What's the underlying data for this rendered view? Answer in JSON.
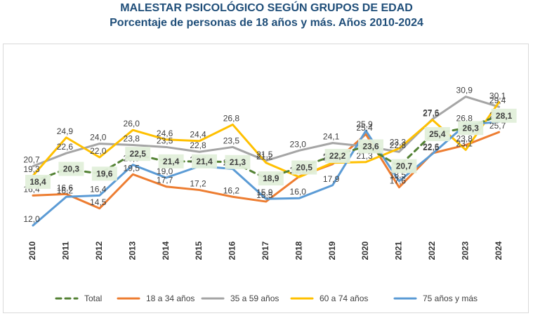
{
  "chart_data": {
    "type": "line",
    "title": "MALESTAR PSICOLÓGICO SEGÚN GRUPOS DE EDAD",
    "subtitle": "Porcentaje de personas de 18 años y más. Años 2010-2024",
    "x": [
      "2010",
      "2011",
      "2012",
      "2013",
      "2014",
      "2015",
      "2016",
      "2017",
      "2018",
      "2019",
      "2020",
      "2021",
      "2022",
      "2023",
      "2024"
    ],
    "ylim": [
      10,
      32
    ],
    "grid": false,
    "legend_position": "bottom",
    "series": [
      {
        "name": "Total",
        "color": "#548235",
        "dashed": true,
        "values": [
          18.4,
          20.3,
          19.6,
          22.5,
          21.4,
          21.4,
          21.3,
          18.9,
          20.5,
          22.2,
          23.6,
          20.7,
          25.4,
          26.3,
          28.1
        ],
        "labels": [
          "18,4",
          "20,3",
          "19,6",
          "22,5",
          "21,4",
          "21,4",
          "21,3",
          "18,9",
          "20,5",
          "22,2",
          "23,6",
          "20,7",
          "25,4",
          "26,3",
          "28,1"
        ]
      },
      {
        "name": "18 a 34 años",
        "color": "#ed7d31",
        "dashed": false,
        "values": [
          16.4,
          16.6,
          14.5,
          19.5,
          17.7,
          17.2,
          16.2,
          15.5,
          19.2,
          21.0,
          25.4,
          17.6,
          22.6,
          23.8,
          25.7
        ],
        "labels": [
          "16,4",
          "16,6",
          "14,5",
          "19,5",
          "17,7",
          "17,2",
          "16,2",
          "15,5",
          "19,2",
          "21,0",
          "25,4",
          "17,6",
          "22,6",
          "23,8",
          "25,7"
        ]
      },
      {
        "name": "35 a 59 años",
        "color": "#a5a5a5",
        "dashed": false,
        "values": [
          20.7,
          22.6,
          24.0,
          23.8,
          23.5,
          22.8,
          23.5,
          21.5,
          23.0,
          24.1,
          23.6,
          22.8,
          27.6,
          30.9,
          29.4
        ],
        "labels": [
          "20,7",
          "22,6",
          "24,0",
          "23,8",
          "23,5",
          "22,8",
          "23,5",
          "21,5",
          "23,0",
          "24,1",
          "",
          "22,8",
          "27,6",
          "30,9",
          "29,4"
        ]
      },
      {
        "name": "60 a 74 años",
        "color": "#ffc000",
        "dashed": false,
        "values": [
          19.3,
          24.9,
          22.0,
          26.0,
          24.6,
          24.4,
          26.8,
          21.2,
          19.1,
          21.2,
          21.3,
          23.3,
          27.5,
          23.1,
          30.1
        ],
        "labels": [
          "19,3",
          "24,9",
          "22,0",
          "26,0",
          "24,6",
          "24,4",
          "26,8",
          "21,2",
          "19,1",
          "21,2",
          "21,3",
          "23,3",
          "27,5",
          "23,1",
          "30,1"
        ]
      },
      {
        "name": "75 años y más",
        "color": "#5b9bd5",
        "dashed": false,
        "values": [
          12.0,
          16.2,
          16.4,
          20.9,
          19.0,
          20.7,
          20.3,
          15.9,
          16.0,
          17.9,
          25.9,
          18.5,
          22.5,
          26.8,
          27.2
        ],
        "labels": [
          "12,0",
          "16,2",
          "16,4",
          "20,9",
          "19,0",
          "20,7",
          "20,3",
          "15,9",
          "16,0",
          "17,9",
          "25,9",
          "18,5",
          "22,5",
          "26,8",
          "27,2"
        ]
      }
    ]
  }
}
